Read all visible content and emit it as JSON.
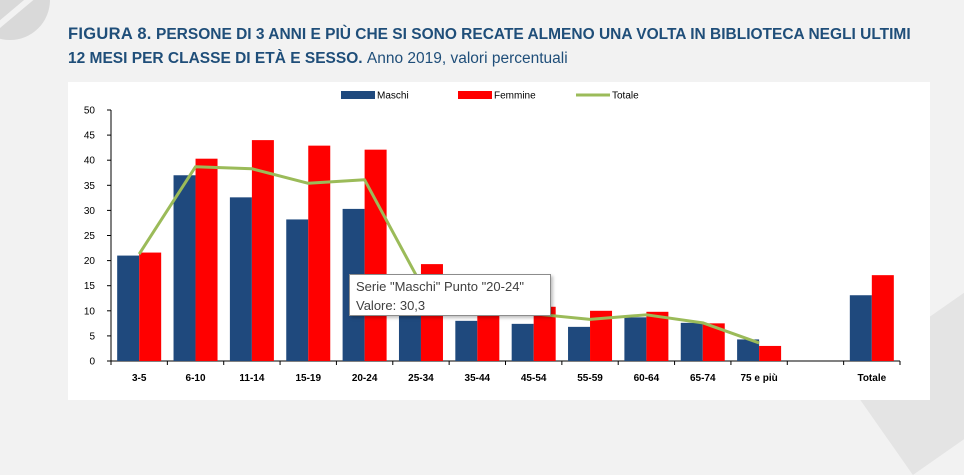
{
  "title": {
    "figure_label": "FIGURA 8.",
    "main": "PERSONE DI 3 ANNI E PIÙ CHE SI SONO RECATE ALMENO UNA VOLTA IN BIBLIOTECA NEGLI ULTIMI 12 MESI PER CLASSE DI ETÀ E SESSO.",
    "subtitle": "Anno 2019, valori percentuali"
  },
  "tooltip": {
    "line1": "Serie \"Maschi\" Punto \"20-24\"",
    "line2": "Valore: 30,3"
  },
  "colors": {
    "maschi": "#1f497d",
    "femmine": "#ff0000",
    "totale": "#9bbb59",
    "title": "#1f4e79"
  },
  "chart_data": {
    "type": "bar",
    "title": "",
    "xlabel": "",
    "ylabel": "",
    "ylim": [
      0,
      50
    ],
    "yticks": [
      0,
      5,
      10,
      15,
      20,
      25,
      30,
      35,
      40,
      45,
      50
    ],
    "grid": false,
    "legend": "top",
    "categories": [
      "3-5",
      "6-10",
      "11-14",
      "15-19",
      "20-24",
      "25-34",
      "35-44",
      "45-54",
      "55-59",
      "60-64",
      "65-74",
      "75 e più",
      "",
      "Totale"
    ],
    "series": [
      {
        "name": "Maschi",
        "type": "bar",
        "values": [
          21.0,
          37.0,
          32.6,
          28.2,
          30.3,
          11.5,
          8.0,
          7.4,
          6.8,
          8.7,
          7.6,
          4.3,
          null,
          13.1
        ]
      },
      {
        "name": "Femmine",
        "type": "bar",
        "values": [
          21.6,
          40.3,
          44.0,
          42.9,
          42.1,
          19.3,
          12.3,
          10.8,
          10.0,
          9.8,
          7.5,
          3.0,
          null,
          17.1
        ]
      },
      {
        "name": "Totale",
        "type": "line",
        "values": [
          21.3,
          38.7,
          38.3,
          35.4,
          36.1,
          15.3,
          10.2,
          9.4,
          8.3,
          9.2,
          7.6,
          3.6,
          null,
          null
        ]
      }
    ]
  }
}
